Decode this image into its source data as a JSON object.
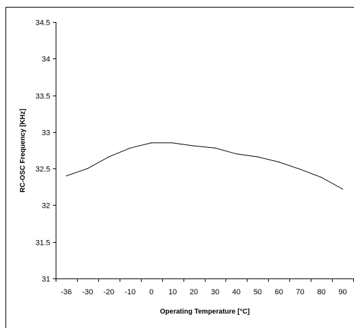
{
  "chart_data": {
    "type": "line",
    "title": "",
    "xlabel": "Operating Temperature [°C]",
    "ylabel": "RC-OSC Frequency [KHz]",
    "categories": [
      "-36",
      "-30",
      "-20",
      "-10",
      "0",
      "10",
      "20",
      "30",
      "40",
      "50",
      "60",
      "70",
      "80",
      "90"
    ],
    "yticks": [
      "31",
      "31.5",
      "32",
      "32.5",
      "33",
      "33.5",
      "34",
      "34.5"
    ],
    "ylim": [
      31,
      34.5
    ],
    "grid": false,
    "legend": "none",
    "series": [
      {
        "values": [
          32.4,
          32.5,
          32.66,
          32.78,
          32.85,
          32.85,
          32.81,
          32.78,
          32.7,
          32.66,
          32.59,
          32.49,
          32.38,
          32.22
        ]
      }
    ],
    "line_color": "#000000"
  }
}
